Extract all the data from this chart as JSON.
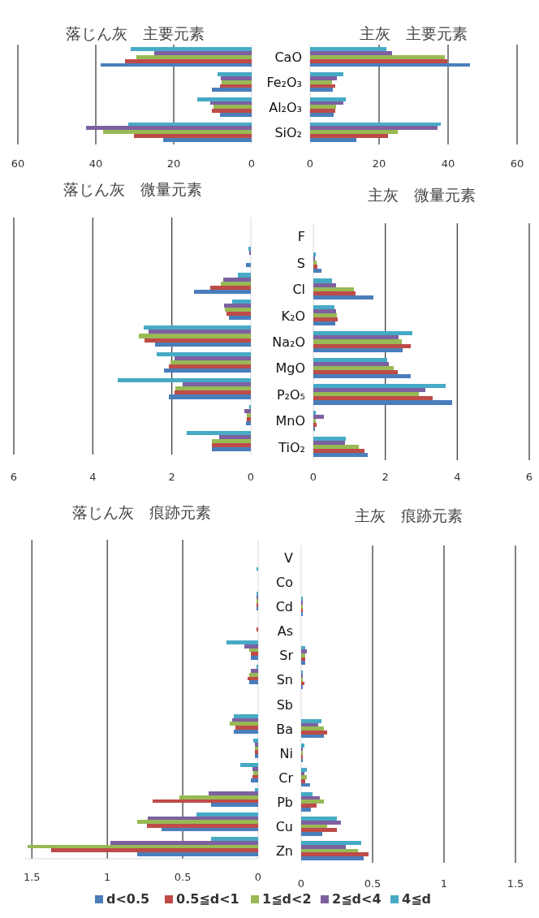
{
  "chart_data": [
    {
      "type": "bar",
      "orientation": "horizontal",
      "title": "落じん灰　主要元素",
      "categories": [
        null,
        null,
        null,
        null
      ],
      "xlim": [
        60,
        0
      ],
      "xticks": [
        60,
        40,
        20,
        0
      ],
      "grid": "x",
      "tick_labels": "x",
      "series": [
        {
          "color": "#4a7ebb",
          "values": [
            38.8,
            10.3,
            8.2,
            22.7
          ]
        },
        {
          "color": "#be4b48",
          "values": [
            32.6,
            8.1,
            10.2,
            30.3
          ]
        },
        {
          "color": "#98b954",
          "values": [
            29.5,
            7.8,
            9.8,
            38.1
          ]
        },
        {
          "color": "#7d60a0",
          "values": [
            25.0,
            8.0,
            10.7,
            42.6
          ]
        },
        {
          "color": "#46aac5",
          "values": [
            31.1,
            8.8,
            14.0,
            31.7
          ]
        }
      ]
    },
    {
      "type": "bar",
      "orientation": "horizontal",
      "title": "主灰　主要元素",
      "categories": [
        "CaO",
        "Fe₂O₃",
        "Al₂O₃",
        "SiO₂"
      ],
      "xlim": [
        0,
        60
      ],
      "xticks": [
        0,
        20,
        40,
        60
      ],
      "grid": "x",
      "series": [
        {
          "color": "#4a7ebb",
          "values": [
            46.4,
            6.6,
            6.8,
            13.3
          ]
        },
        {
          "color": "#be4b48",
          "values": [
            39.8,
            7.4,
            7.4,
            22.5
          ]
        },
        {
          "color": "#98b954",
          "values": [
            39.0,
            6.3,
            7.6,
            25.3
          ]
        },
        {
          "color": "#7d60a0",
          "values": [
            23.8,
            7.7,
            9.6,
            36.9
          ]
        },
        {
          "color": "#46aac5",
          "values": [
            22.1,
            9.6,
            10.3,
            37.9
          ]
        }
      ]
    },
    {
      "type": "bar",
      "orientation": "horizontal",
      "title": "落じん灰　微量元素",
      "categories": [
        null,
        null,
        null,
        null,
        null,
        null,
        null,
        null,
        null
      ],
      "xlim": [
        6,
        0
      ],
      "xticks": [
        6,
        4,
        2,
        0
      ],
      "grid": "x",
      "tick_labels": "x",
      "series": [
        {
          "color": "#4a7ebb",
          "values": [
            null,
            0.12,
            1.44,
            0.55,
            2.42,
            2.2,
            2.08,
            0.12,
            0.99
          ]
        },
        {
          "color": "#be4b48",
          "values": [
            null,
            null,
            1.02,
            0.62,
            2.7,
            2.07,
            1.93,
            0.1,
            0.98
          ]
        },
        {
          "color": "#98b954",
          "values": [
            null,
            null,
            0.77,
            0.66,
            2.84,
            2.03,
            1.92,
            0.11,
            0.98
          ]
        },
        {
          "color": "#7d60a0",
          "values": [
            null,
            0.04,
            0.7,
            0.68,
            2.58,
            1.93,
            1.73,
            0.17,
            0.81
          ]
        },
        {
          "color": "#46aac5",
          "values": [
            null,
            0.07,
            0.33,
            0.48,
            2.71,
            2.38,
            3.37,
            0.05,
            1.62
          ]
        }
      ]
    },
    {
      "type": "bar",
      "orientation": "horizontal",
      "title": "主灰　微量元素",
      "categories": [
        "F",
        "S",
        "Cl",
        "K₂O",
        "Na₂O",
        "MgO",
        "P₂O₅",
        "MnO",
        "TiO₂"
      ],
      "xlim": [
        0,
        6
      ],
      "xticks": [
        0,
        2,
        4,
        6
      ],
      "grid": "x",
      "series": [
        {
          "color": "#4a7ebb",
          "values": [
            null,
            0.22,
            1.68,
            0.6,
            2.47,
            2.71,
            3.86,
            0.05,
            1.51
          ]
        },
        {
          "color": "#be4b48",
          "values": [
            null,
            0.12,
            1.18,
            0.68,
            2.7,
            2.35,
            3.32,
            0.08,
            1.42
          ]
        },
        {
          "color": "#98b954",
          "values": [
            null,
            0.1,
            1.12,
            0.65,
            2.46,
            2.23,
            2.94,
            0.07,
            1.27
          ]
        },
        {
          "color": "#7d60a0",
          "values": [
            null,
            0.05,
            0.63,
            0.63,
            2.37,
            2.1,
            3.11,
            0.29,
            0.87
          ]
        },
        {
          "color": "#46aac5",
          "values": [
            null,
            0.07,
            0.53,
            0.58,
            2.76,
            2.06,
            3.68,
            0.07,
            0.91
          ]
        }
      ]
    },
    {
      "type": "bar",
      "orientation": "horizontal",
      "title": "落じん灰　痕跡元素",
      "categories": [
        null,
        null,
        null,
        null,
        null,
        null,
        null,
        null,
        null,
        null,
        null,
        null,
        null
      ],
      "xlim": [
        1.55,
        0
      ],
      "xticks": [
        1.5,
        1,
        0.5,
        0
      ],
      "grid": "x",
      "tick_labels": "x",
      "series": [
        {
          "color": "#4a7ebb",
          "values": [
            null,
            null,
            0.01,
            null,
            0.05,
            0.06,
            null,
            0.16,
            0.02,
            0.05,
            0.31,
            0.64,
            0.8
          ]
        },
        {
          "color": "#be4b48",
          "values": [
            null,
            null,
            0.01,
            0.01,
            0.05,
            0.07,
            null,
            0.15,
            0.02,
            0.04,
            0.7,
            0.74,
            1.37
          ]
        },
        {
          "color": "#98b954",
          "values": [
            null,
            null,
            0.01,
            null,
            0.06,
            0.06,
            null,
            0.19,
            0.02,
            0.03,
            0.52,
            0.8,
            1.53
          ]
        },
        {
          "color": "#7d60a0",
          "values": [
            null,
            null,
            0.01,
            null,
            0.09,
            0.05,
            null,
            0.17,
            0.02,
            0.04,
            0.33,
            0.73,
            0.98
          ]
        },
        {
          "color": "#46aac5",
          "values": [
            null,
            0.01,
            0.01,
            null,
            0.21,
            0.01,
            null,
            0.16,
            0.03,
            0.12,
            0.02,
            0.41,
            0.31
          ]
        }
      ]
    },
    {
      "type": "bar",
      "orientation": "horizontal",
      "title": "主灰　痕跡元素",
      "categories": [
        "V",
        "Co",
        "Cd",
        "As",
        "Sr",
        "Sn",
        "Sb",
        "Ba",
        "Ni",
        "Cr",
        "Pb",
        "Cu",
        "Zn"
      ],
      "xlim": [
        0,
        1.5
      ],
      "xticks": [
        0,
        0.5,
        1,
        1.5
      ],
      "grid": "x",
      "legend": "bottom",
      "series": [
        {
          "name": "d<0.5",
          "color": "#4a7ebb",
          "values": [
            null,
            null,
            0.01,
            null,
            0.03,
            0.01,
            null,
            0.16,
            0.01,
            0.06,
            0.07,
            0.15,
            0.44
          ]
        },
        {
          "name": "0.5≦d<1",
          "color": "#be4b48",
          "values": [
            null,
            null,
            0.01,
            null,
            0.03,
            0.02,
            null,
            0.18,
            0.01,
            0.03,
            0.11,
            0.25,
            0.47
          ]
        },
        {
          "name": "1≦d<2",
          "color": "#98b954",
          "values": [
            null,
            null,
            0.01,
            null,
            0.03,
            0.01,
            null,
            0.16,
            0.01,
            0.04,
            0.16,
            0.18,
            0.4
          ]
        },
        {
          "name": "2≦d<4",
          "color": "#7d60a0",
          "values": [
            null,
            null,
            0.01,
            null,
            0.04,
            0.01,
            null,
            0.12,
            0.01,
            0.02,
            0.13,
            0.28,
            0.31
          ]
        },
        {
          "name": "4≦d",
          "color": "#46aac5",
          "values": [
            null,
            null,
            0.01,
            null,
            0.03,
            0.01,
            null,
            0.14,
            0.02,
            0.04,
            0.08,
            0.25,
            0.42
          ]
        }
      ]
    }
  ]
}
